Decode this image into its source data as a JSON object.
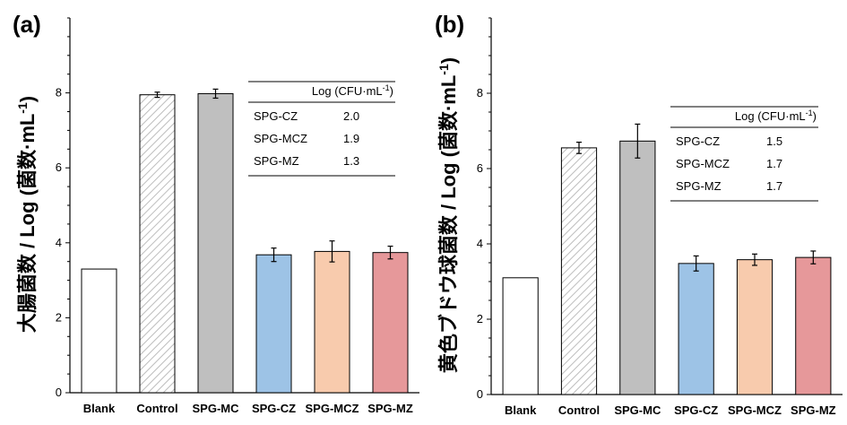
{
  "chart_data": [
    {
      "type": "bar",
      "panel_label": "(a)",
      "ylabel": "大腸菌数 / Log (菌数·mL",
      "ylabel_sup": "-1",
      "ylabel_close": ")",
      "categories": [
        "Blank",
        "Control",
        "SPG-MC",
        "SPG-CZ",
        "SPG-MCZ",
        "SPG-MZ"
      ],
      "values": [
        3.3,
        7.95,
        7.98,
        3.68,
        3.77,
        3.74
      ],
      "errors": [
        0,
        0.07,
        0.12,
        0.18,
        0.28,
        0.17
      ],
      "ylim": [
        0,
        10
      ],
      "yticks": [
        0,
        2,
        4,
        6,
        8
      ],
      "table": {
        "header": "Log (CFU·mL",
        "header_sup": "-1",
        "header_close": ")",
        "rows": [
          {
            "label": "SPG-CZ",
            "value": "2.0"
          },
          {
            "label": "SPG-MCZ",
            "value": "1.9"
          },
          {
            "label": "SPG-MZ",
            "value": "1.3"
          }
        ]
      }
    },
    {
      "type": "bar",
      "panel_label": "(b)",
      "ylabel": "黄色ブドウ球菌数 / Log (菌数·mL",
      "ylabel_sup": "-1",
      "ylabel_close": ")",
      "categories": [
        "Blank",
        "Control",
        "SPG-MC",
        "SPG-CZ",
        "SPG-MCZ",
        "SPG-MZ"
      ],
      "values": [
        3.1,
        6.55,
        6.73,
        3.48,
        3.58,
        3.64
      ],
      "errors": [
        0,
        0.15,
        0.45,
        0.2,
        0.15,
        0.17
      ],
      "ylim": [
        0,
        10
      ],
      "yticks": [
        0,
        2,
        4,
        6,
        8
      ],
      "table": {
        "header": "Log (CFU·mL",
        "header_sup": "-1",
        "header_close": ")",
        "rows": [
          {
            "label": "SPG-CZ",
            "value": "1.5"
          },
          {
            "label": "SPG-MCZ",
            "value": "1.7"
          },
          {
            "label": "SPG-MZ",
            "value": "1.7"
          }
        ]
      }
    }
  ],
  "colors": {
    "blank": "#ffffff",
    "control_hatch": "#bdbdbd",
    "spg_mc": "#bfbfbf",
    "spg_cz": "#9dc3e6",
    "spg_mcz": "#f8cbad",
    "spg_mz": "#e6989a"
  }
}
